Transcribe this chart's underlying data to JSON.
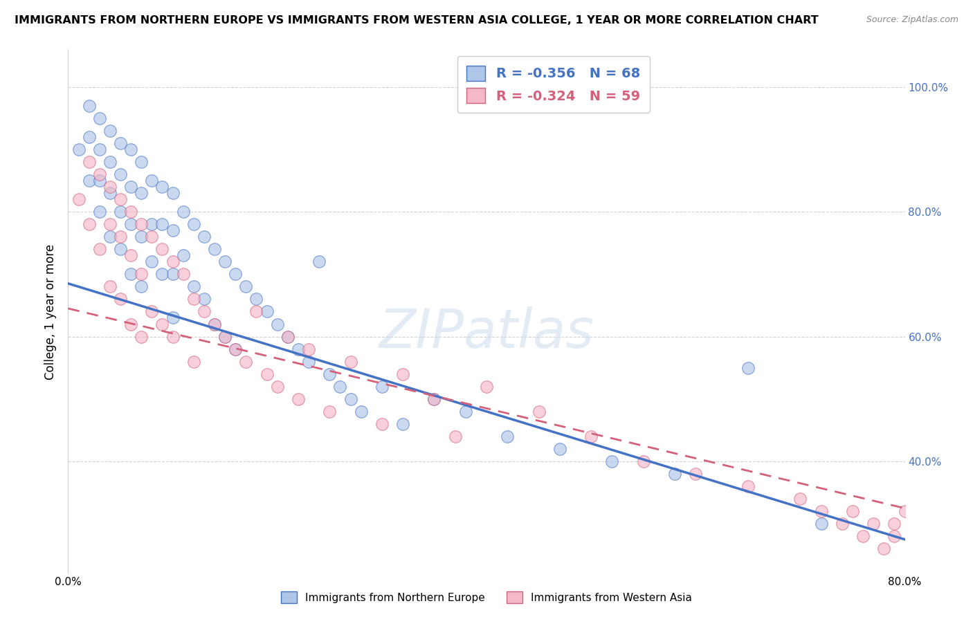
{
  "title": "IMMIGRANTS FROM NORTHERN EUROPE VS IMMIGRANTS FROM WESTERN ASIA COLLEGE, 1 YEAR OR MORE CORRELATION CHART",
  "source": "Source: ZipAtlas.com",
  "ylabel": "College, 1 year or more",
  "xlim": [
    0.0,
    0.8
  ],
  "ylim": [
    0.22,
    1.06
  ],
  "blue_R": -0.356,
  "blue_N": 68,
  "pink_R": -0.324,
  "pink_N": 59,
  "blue_color": "#aec6e8",
  "pink_color": "#f4b8c8",
  "blue_line_color": "#4472c4",
  "pink_line_color": "#d4607a",
  "watermark": "ZIPatlas",
  "legend_labels": [
    "Immigrants from Northern Europe",
    "Immigrants from Western Asia"
  ],
  "blue_scatter_x": [
    0.01,
    0.02,
    0.02,
    0.02,
    0.03,
    0.03,
    0.03,
    0.03,
    0.04,
    0.04,
    0.04,
    0.04,
    0.05,
    0.05,
    0.05,
    0.05,
    0.06,
    0.06,
    0.06,
    0.06,
    0.07,
    0.07,
    0.07,
    0.07,
    0.08,
    0.08,
    0.08,
    0.09,
    0.09,
    0.09,
    0.1,
    0.1,
    0.1,
    0.1,
    0.11,
    0.11,
    0.12,
    0.12,
    0.13,
    0.13,
    0.14,
    0.14,
    0.15,
    0.15,
    0.16,
    0.16,
    0.17,
    0.18,
    0.19,
    0.2,
    0.21,
    0.22,
    0.23,
    0.24,
    0.25,
    0.26,
    0.27,
    0.28,
    0.3,
    0.32,
    0.35,
    0.38,
    0.42,
    0.47,
    0.52,
    0.58,
    0.65,
    0.72
  ],
  "blue_scatter_y": [
    0.9,
    0.97,
    0.92,
    0.85,
    0.95,
    0.9,
    0.85,
    0.8,
    0.93,
    0.88,
    0.83,
    0.76,
    0.91,
    0.86,
    0.8,
    0.74,
    0.9,
    0.84,
    0.78,
    0.7,
    0.88,
    0.83,
    0.76,
    0.68,
    0.85,
    0.78,
    0.72,
    0.84,
    0.78,
    0.7,
    0.83,
    0.77,
    0.7,
    0.63,
    0.8,
    0.73,
    0.78,
    0.68,
    0.76,
    0.66,
    0.74,
    0.62,
    0.72,
    0.6,
    0.7,
    0.58,
    0.68,
    0.66,
    0.64,
    0.62,
    0.6,
    0.58,
    0.56,
    0.72,
    0.54,
    0.52,
    0.5,
    0.48,
    0.52,
    0.46,
    0.5,
    0.48,
    0.44,
    0.42,
    0.4,
    0.38,
    0.55,
    0.3
  ],
  "pink_scatter_x": [
    0.01,
    0.02,
    0.02,
    0.03,
    0.03,
    0.04,
    0.04,
    0.04,
    0.05,
    0.05,
    0.05,
    0.06,
    0.06,
    0.06,
    0.07,
    0.07,
    0.07,
    0.08,
    0.08,
    0.09,
    0.09,
    0.1,
    0.1,
    0.11,
    0.12,
    0.12,
    0.13,
    0.14,
    0.15,
    0.16,
    0.17,
    0.18,
    0.19,
    0.2,
    0.21,
    0.22,
    0.23,
    0.25,
    0.27,
    0.3,
    0.32,
    0.35,
    0.37,
    0.4,
    0.45,
    0.5,
    0.55,
    0.6,
    0.65,
    0.7,
    0.72,
    0.74,
    0.75,
    0.76,
    0.77,
    0.78,
    0.79,
    0.79,
    0.8
  ],
  "pink_scatter_y": [
    0.82,
    0.88,
    0.78,
    0.86,
    0.74,
    0.84,
    0.78,
    0.68,
    0.82,
    0.76,
    0.66,
    0.8,
    0.73,
    0.62,
    0.78,
    0.7,
    0.6,
    0.76,
    0.64,
    0.74,
    0.62,
    0.72,
    0.6,
    0.7,
    0.66,
    0.56,
    0.64,
    0.62,
    0.6,
    0.58,
    0.56,
    0.64,
    0.54,
    0.52,
    0.6,
    0.5,
    0.58,
    0.48,
    0.56,
    0.46,
    0.54,
    0.5,
    0.44,
    0.52,
    0.48,
    0.44,
    0.4,
    0.38,
    0.36,
    0.34,
    0.32,
    0.3,
    0.32,
    0.28,
    0.3,
    0.26,
    0.28,
    0.3,
    0.32
  ],
  "blue_line_x0": 0.0,
  "blue_line_y0": 0.685,
  "blue_line_x1": 0.8,
  "blue_line_y1": 0.275,
  "pink_line_x0": 0.0,
  "pink_line_y0": 0.645,
  "pink_line_x1": 0.8,
  "pink_line_y1": 0.325
}
